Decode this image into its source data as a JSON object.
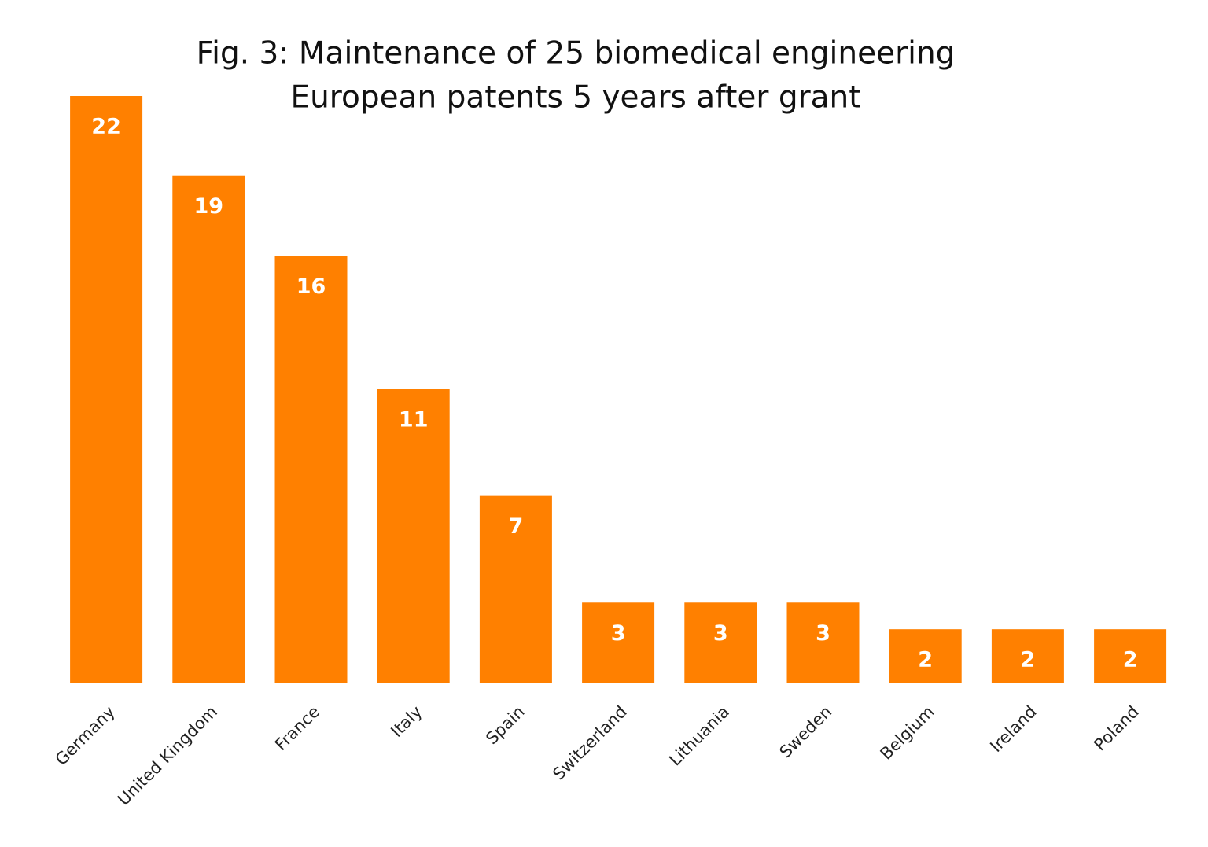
{
  "chart_data": {
    "type": "bar",
    "title": [
      "Fig. 3: Maintenance of 25 biomedical engineering",
      "European patents 5 years after grant"
    ],
    "categories": [
      "Germany",
      "United Kingdom",
      "France",
      "Italy",
      "Spain",
      "Switzerland",
      "Lithuania",
      "Sweden",
      "Belgium",
      "Ireland",
      "Poland"
    ],
    "values": [
      22,
      19,
      16,
      11,
      7,
      3,
      3,
      3,
      2,
      2,
      2
    ],
    "color": "#ff8000"
  }
}
